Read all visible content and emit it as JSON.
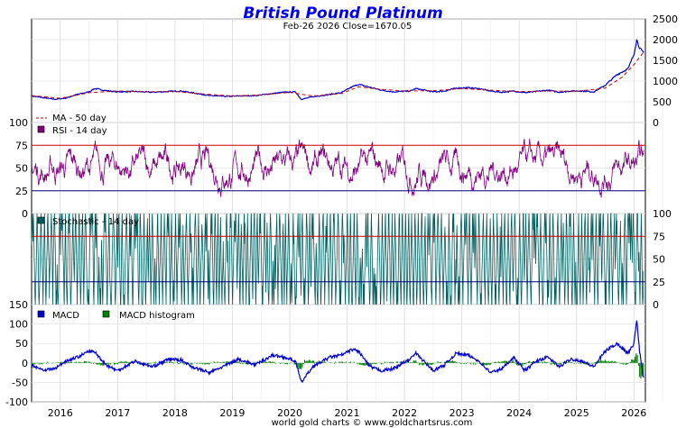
{
  "chart_data": {
    "type": "line",
    "title": "British Pound Platinum",
    "subtitle": "Feb-26  2026   Close=1670.05",
    "footer": "world gold charts © www.goldchartsrus.com",
    "x_axis": {
      "range": [
        2015.5,
        2026.2
      ],
      "ticks": [
        "2016",
        "2017",
        "2018",
        "2019",
        "2020",
        "2021",
        "2022",
        "2023",
        "2024",
        "2025",
        "2026"
      ]
    },
    "panels": [
      {
        "name": "price",
        "y_axis": {
          "side": "right",
          "range": [
            0,
            2500
          ],
          "ticks": [
            "0",
            "500",
            "1000",
            "1500",
            "2000",
            "2500"
          ]
        },
        "legend": [
          {
            "label": "MA - 50 day",
            "color": "#cc0000",
            "style": "dashed"
          }
        ],
        "series": [
          {
            "name": "Price",
            "color": "#0000cc",
            "points": [
              [
                2015.5,
                640
              ],
              [
                2015.7,
                600
              ],
              [
                2015.9,
                560
              ],
              [
                2016.1,
                590
              ],
              [
                2016.3,
                680
              ],
              [
                2016.5,
                740
              ],
              [
                2016.6,
                820
              ],
              [
                2016.8,
                770
              ],
              [
                2017.0,
                740
              ],
              [
                2017.3,
                750
              ],
              [
                2017.6,
                730
              ],
              [
                2017.9,
                750
              ],
              [
                2018.1,
                760
              ],
              [
                2018.3,
                720
              ],
              [
                2018.6,
                650
              ],
              [
                2018.9,
                630
              ],
              [
                2019.1,
                640
              ],
              [
                2019.4,
                650
              ],
              [
                2019.7,
                700
              ],
              [
                2019.9,
                730
              ],
              [
                2020.1,
                740
              ],
              [
                2020.2,
                560
              ],
              [
                2020.4,
                620
              ],
              [
                2020.7,
                680
              ],
              [
                2020.9,
                720
              ],
              [
                2021.1,
                870
              ],
              [
                2021.2,
                920
              ],
              [
                2021.4,
                850
              ],
              [
                2021.6,
                780
              ],
              [
                2021.8,
                740
              ],
              [
                2022.1,
                760
              ],
              [
                2022.2,
                820
              ],
              [
                2022.5,
                740
              ],
              [
                2022.7,
                760
              ],
              [
                2022.9,
                830
              ],
              [
                2023.1,
                840
              ],
              [
                2023.3,
                820
              ],
              [
                2023.5,
                760
              ],
              [
                2023.7,
                730
              ],
              [
                2023.9,
                760
              ],
              [
                2024.1,
                720
              ],
              [
                2024.3,
                750
              ],
              [
                2024.5,
                780
              ],
              [
                2024.7,
                730
              ],
              [
                2024.9,
                760
              ],
              [
                2025.1,
                760
              ],
              [
                2025.3,
                740
              ],
              [
                2025.5,
                900
              ],
              [
                2025.7,
                1150
              ],
              [
                2025.9,
                1300
              ],
              [
                2026.0,
                1650
              ],
              [
                2026.05,
                2000
              ],
              [
                2026.1,
                1800
              ],
              [
                2026.17,
                1670
              ]
            ]
          },
          {
            "name": "MA - 50 day",
            "color": "#cc0000",
            "points": [
              [
                2015.5,
                650
              ],
              [
                2016.0,
                585
              ],
              [
                2016.5,
                720
              ],
              [
                2017.0,
                760
              ],
              [
                2017.5,
                740
              ],
              [
                2018.0,
                750
              ],
              [
                2018.5,
                690
              ],
              [
                2019.0,
                640
              ],
              [
                2019.5,
                665
              ],
              [
                2020.0,
                730
              ],
              [
                2020.4,
                640
              ],
              [
                2020.9,
                700
              ],
              [
                2021.2,
                860
              ],
              [
                2021.6,
                800
              ],
              [
                2022.0,
                760
              ],
              [
                2022.5,
                770
              ],
              [
                2023.0,
                820
              ],
              [
                2023.5,
                780
              ],
              [
                2024.0,
                745
              ],
              [
                2024.5,
                760
              ],
              [
                2025.0,
                755
              ],
              [
                2025.5,
                830
              ],
              [
                2025.8,
                1100
              ],
              [
                2026.0,
                1400
              ],
              [
                2026.17,
                1700
              ]
            ]
          }
        ]
      },
      {
        "name": "rsi",
        "y_axis": {
          "side": "left",
          "range": [
            0,
            100
          ],
          "ticks": [
            "0",
            "25",
            "50",
            "75",
            "100"
          ]
        },
        "reference_lines": [
          {
            "value": 75,
            "color": "#cc0000"
          },
          {
            "value": 25,
            "color": "#000080"
          }
        ],
        "legend": [
          {
            "label": "RSI - 14 day",
            "color": "#800080",
            "style": "box"
          }
        ]
      },
      {
        "name": "stochastic",
        "y_axis": {
          "side": "right",
          "range": [
            0,
            100
          ],
          "ticks": [
            "0",
            "25",
            "50",
            "75",
            "100"
          ]
        },
        "reference_lines": [
          {
            "value": 75,
            "color": "#cc0000"
          },
          {
            "value": 25,
            "color": "#000080"
          }
        ],
        "legend": [
          {
            "label": "Stochastic - 14 day",
            "color": "#006060",
            "style": "box"
          }
        ]
      },
      {
        "name": "macd",
        "y_axis": {
          "side": "left",
          "range": [
            -100,
            150
          ],
          "ticks": [
            "-100",
            "-50",
            "0",
            "50",
            "100",
            "150"
          ]
        },
        "legend": [
          {
            "label": "MACD",
            "color": "#0000cc",
            "style": "box"
          },
          {
            "label": "MACD histogram",
            "color": "#008000",
            "style": "box"
          }
        ],
        "series": [
          {
            "name": "MACD",
            "color": "#0000cc",
            "points": [
              [
                2015.5,
                -5
              ],
              [
                2015.7,
                -18
              ],
              [
                2015.9,
                -15
              ],
              [
                2016.1,
                5
              ],
              [
                2016.3,
                15
              ],
              [
                2016.5,
                30
              ],
              [
                2016.6,
                28
              ],
              [
                2016.8,
                -5
              ],
              [
                2017.0,
                -20
              ],
              [
                2017.3,
                5
              ],
              [
                2017.6,
                -10
              ],
              [
                2017.9,
                10
              ],
              [
                2018.1,
                8
              ],
              [
                2018.3,
                -10
              ],
              [
                2018.6,
                -25
              ],
              [
                2018.9,
                -5
              ],
              [
                2019.1,
                10
              ],
              [
                2019.4,
                -5
              ],
              [
                2019.7,
                20
              ],
              [
                2019.9,
                15
              ],
              [
                2020.1,
                5
              ],
              [
                2020.2,
                -50
              ],
              [
                2020.4,
                -10
              ],
              [
                2020.7,
                15
              ],
              [
                2020.9,
                20
              ],
              [
                2021.1,
                35
              ],
              [
                2021.2,
                30
              ],
              [
                2021.4,
                -10
              ],
              [
                2021.6,
                -20
              ],
              [
                2021.8,
                -15
              ],
              [
                2022.1,
                10
              ],
              [
                2022.2,
                25
              ],
              [
                2022.5,
                -20
              ],
              [
                2022.7,
                -5
              ],
              [
                2022.9,
                25
              ],
              [
                2023.1,
                20
              ],
              [
                2023.3,
                5
              ],
              [
                2023.5,
                -25
              ],
              [
                2023.7,
                -15
              ],
              [
                2023.9,
                15
              ],
              [
                2024.1,
                -20
              ],
              [
                2024.3,
                5
              ],
              [
                2024.5,
                15
              ],
              [
                2024.7,
                -10
              ],
              [
                2024.9,
                10
              ],
              [
                2025.1,
                5
              ],
              [
                2025.3,
                -10
              ],
              [
                2025.5,
                30
              ],
              [
                2025.7,
                50
              ],
              [
                2025.9,
                25
              ],
              [
                2026.0,
                50
              ],
              [
                2026.05,
                110
              ],
              [
                2026.1,
                30
              ],
              [
                2026.17,
                -40
              ]
            ]
          }
        ]
      }
    ]
  }
}
